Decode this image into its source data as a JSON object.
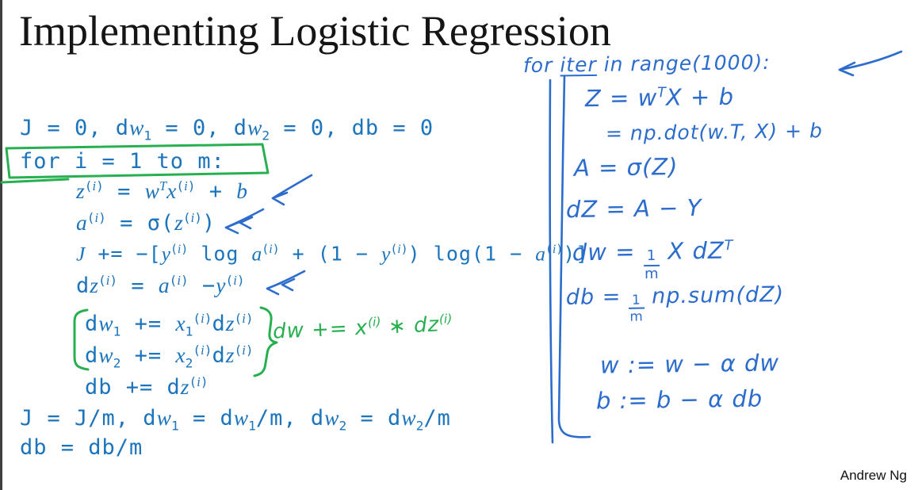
{
  "title": "Implementing Logistic Regression",
  "credit": "Andrew Ng",
  "colors": {
    "typed_blue": "#1b74bc",
    "hand_blue": "#2b6ccd",
    "annotation_green": "#28af50",
    "border_dark": "#3f3f3f"
  },
  "typed_code": {
    "lines": [
      "J = 0, d*w*_{1} = 0, d*w*_{2} = 0, db = 0",
      "for i = 1 to m:",
      "*z*^{(*i*)} = *w*^{*T*}*x*^{(*i*)} + *b*",
      "*a*^{(*i*)} = σ(*z*^{(*i*)})",
      "*J* += −[*y*^{(*i*)} log *a*^{(*i*)} + (1 − *y*^{(*i*)}) log(1 − *a*^{(*i*)})]",
      "d*z*^{(*i*)} = *a*^{(*i*)} −*y*^{(*i*)}",
      "d*w*_{1} += *x*_{1}^{(*i*)}d*z*^{(*i*)}",
      "d*w*_{2} += *x*_{2}^{(*i*)}d*z*^{(*i*)}",
      "db += d*z*^{(*i*)}",
      "J = J/m, d*w*_{1} = d*w*_{1}/m, d*w*_{2} = d*w*_{2}/m",
      "db = db/m"
    ]
  },
  "hand_notes": {
    "loop_header": "for ~iter~ in range(1000):",
    "lines": [
      "Z = w^{T}X + b",
      "= np.dot(w.T, X) + b",
      "A = σ(Z)",
      "dZ = A − Y",
      "dw = [[1/m]] X dZ^{T}",
      "db = [[1/m]] np.sum(dZ)",
      "w := w − α dw",
      "b := b − α db"
    ]
  },
  "green_note": "dw += x^{(i)} ∗ dz^{(i)}"
}
